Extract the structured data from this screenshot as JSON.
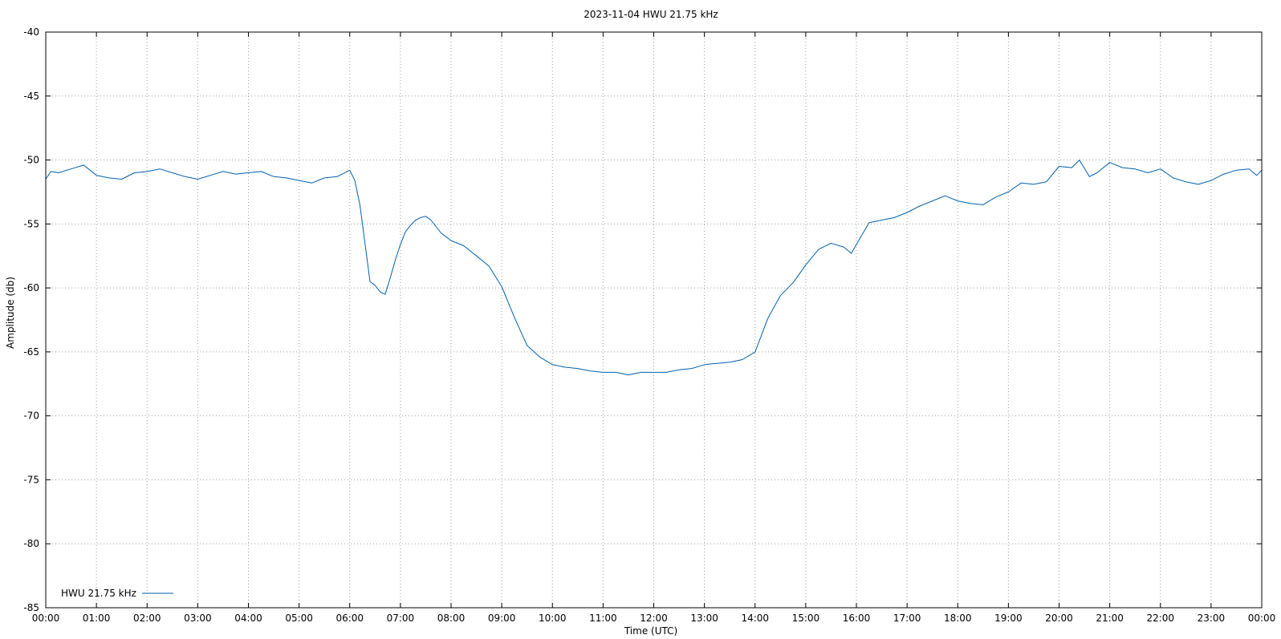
{
  "chart_data": {
    "type": "line",
    "title": "2023-11-04 HWU 21.75 kHz",
    "xlabel": "Time (UTC)",
    "ylabel": "Amplitude (db)",
    "x_unit": "hour of day (UTC)",
    "xlim": [
      0,
      24
    ],
    "ylim": [
      -85,
      -40
    ],
    "x_ticks": [
      {
        "value": 0,
        "label": "00:00"
      },
      {
        "value": 1,
        "label": "01:00"
      },
      {
        "value": 2,
        "label": "02:00"
      },
      {
        "value": 3,
        "label": "03:00"
      },
      {
        "value": 4,
        "label": "04:00"
      },
      {
        "value": 5,
        "label": "05:00"
      },
      {
        "value": 6,
        "label": "06:00"
      },
      {
        "value": 7,
        "label": "07:00"
      },
      {
        "value": 8,
        "label": "08:00"
      },
      {
        "value": 9,
        "label": "09:00"
      },
      {
        "value": 10,
        "label": "10:00"
      },
      {
        "value": 11,
        "label": "11:00"
      },
      {
        "value": 12,
        "label": "12:00"
      },
      {
        "value": 13,
        "label": "13:00"
      },
      {
        "value": 14,
        "label": "14:00"
      },
      {
        "value": 15,
        "label": "15:00"
      },
      {
        "value": 16,
        "label": "16:00"
      },
      {
        "value": 17,
        "label": "17:00"
      },
      {
        "value": 18,
        "label": "18:00"
      },
      {
        "value": 19,
        "label": "19:00"
      },
      {
        "value": 20,
        "label": "20:00"
      },
      {
        "value": 21,
        "label": "21:00"
      },
      {
        "value": 22,
        "label": "22:00"
      },
      {
        "value": 23,
        "label": "23:00"
      },
      {
        "value": 24,
        "label": "00:00"
      }
    ],
    "y_ticks": [
      {
        "value": -40,
        "label": "-40"
      },
      {
        "value": -45,
        "label": "-45"
      },
      {
        "value": -50,
        "label": "-50"
      },
      {
        "value": -55,
        "label": "-55"
      },
      {
        "value": -60,
        "label": "-60"
      },
      {
        "value": -65,
        "label": "-65"
      },
      {
        "value": -70,
        "label": "-70"
      },
      {
        "value": -75,
        "label": "-75"
      },
      {
        "value": -80,
        "label": "-80"
      },
      {
        "value": -85,
        "label": "-85"
      }
    ],
    "grid": true,
    "legend_position": "bottom-left",
    "series": [
      {
        "name": "HWU 21.75 kHz",
        "color": "#0060ad",
        "x": [
          0,
          0.1,
          0.25,
          0.5,
          0.75,
          1.0,
          1.25,
          1.5,
          1.75,
          2.0,
          2.25,
          2.5,
          2.75,
          3.0,
          3.25,
          3.5,
          3.75,
          4.0,
          4.25,
          4.5,
          4.75,
          5.0,
          5.25,
          5.5,
          5.75,
          6.0,
          6.1,
          6.2,
          6.3,
          6.4,
          6.5,
          6.6,
          6.7,
          6.8,
          6.9,
          7.0,
          7.1,
          7.2,
          7.3,
          7.4,
          7.5,
          7.6,
          7.7,
          7.8,
          7.9,
          8.0,
          8.25,
          8.5,
          8.75,
          9.0,
          9.25,
          9.5,
          9.75,
          10.0,
          10.25,
          10.5,
          10.75,
          11.0,
          11.25,
          11.5,
          11.75,
          12.0,
          12.25,
          12.5,
          12.75,
          13.0,
          13.25,
          13.5,
          13.75,
          14.0,
          14.25,
          14.5,
          14.75,
          15.0,
          15.25,
          15.5,
          15.75,
          15.9,
          16.0,
          16.25,
          16.5,
          16.75,
          17.0,
          17.25,
          17.5,
          17.75,
          18.0,
          18.25,
          18.5,
          18.75,
          19.0,
          19.25,
          19.5,
          19.75,
          20.0,
          20.25,
          20.4,
          20.6,
          20.75,
          21.0,
          21.25,
          21.5,
          21.75,
          22.0,
          22.25,
          22.5,
          22.75,
          23.0,
          23.25,
          23.5,
          23.75,
          23.9,
          24.0
        ],
        "y": [
          -51.5,
          -50.9,
          -51.0,
          -50.7,
          -50.4,
          -51.2,
          -51.4,
          -51.5,
          -51.0,
          -50.9,
          -50.7,
          -51.0,
          -51.3,
          -51.5,
          -51.2,
          -50.9,
          -51.1,
          -51.0,
          -50.9,
          -51.3,
          -51.4,
          -51.6,
          -51.8,
          -51.4,
          -51.3,
          -50.8,
          -51.6,
          -53.5,
          -56.5,
          -59.5,
          -59.8,
          -60.3,
          -60.5,
          -59.2,
          -57.8,
          -56.6,
          -55.6,
          -55.1,
          -54.7,
          -54.5,
          -54.4,
          -54.7,
          -55.2,
          -55.7,
          -56.0,
          -56.3,
          -56.7,
          -57.5,
          -58.3,
          -59.9,
          -62.3,
          -64.5,
          -65.4,
          -66.0,
          -66.2,
          -66.3,
          -66.5,
          -66.6,
          -66.6,
          -66.8,
          -66.6,
          -66.6,
          -66.6,
          -66.4,
          -66.3,
          -66.0,
          -65.9,
          -65.8,
          -65.6,
          -65.0,
          -62.4,
          -60.6,
          -59.6,
          -58.2,
          -57.0,
          -56.5,
          -56.8,
          -57.3,
          -56.6,
          -54.9,
          -54.7,
          -54.5,
          -54.1,
          -53.6,
          -53.2,
          -52.8,
          -53.2,
          -53.4,
          -53.5,
          -52.9,
          -52.5,
          -51.8,
          -51.9,
          -51.7,
          -50.5,
          -50.6,
          -50.0,
          -51.3,
          -51.0,
          -50.2,
          -50.6,
          -50.7,
          -51.0,
          -50.7,
          -51.4,
          -51.7,
          -51.9,
          -51.6,
          -51.1,
          -50.8,
          -50.7,
          -51.2,
          -50.8
        ]
      }
    ]
  }
}
